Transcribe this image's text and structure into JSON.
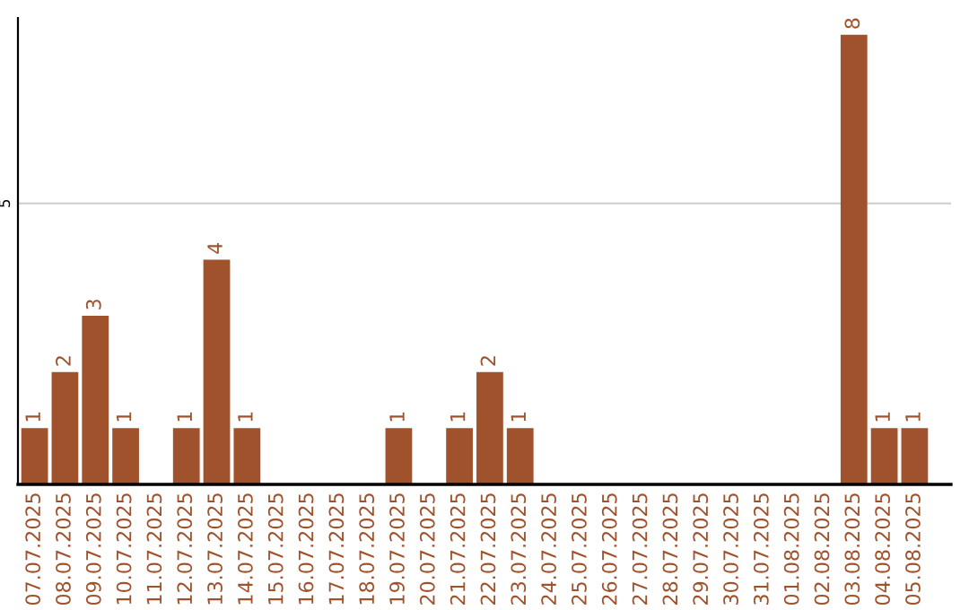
{
  "chart_data": {
    "type": "bar",
    "categories": [
      "07.07.2025",
      "08.07.2025",
      "09.07.2025",
      "10.07.2025",
      "11.07.2025",
      "12.07.2025",
      "13.07.2025",
      "14.07.2025",
      "15.07.2025",
      "16.07.2025",
      "17.07.2025",
      "18.07.2025",
      "19.07.2025",
      "20.07.2025",
      "21.07.2025",
      "22.07.2025",
      "23.07.2025",
      "24.07.2025",
      "25.07.2025",
      "26.07.2025",
      "27.07.2025",
      "28.07.2025",
      "29.07.2025",
      "30.07.2025",
      "31.07.2025",
      "01.08.2025",
      "02.08.2025",
      "03.08.2025",
      "04.08.2025",
      "05.08.2025"
    ],
    "values": [
      1,
      2,
      3,
      1,
      0,
      1,
      4,
      1,
      0,
      0,
      0,
      0,
      1,
      0,
      1,
      2,
      1,
      0,
      0,
      0,
      0,
      0,
      0,
      0,
      0,
      0,
      0,
      8,
      1,
      1
    ],
    "value_labels": [
      "1",
      "2",
      "3",
      "1",
      null,
      "1",
      "4",
      "1",
      null,
      null,
      null,
      null,
      "1",
      null,
      "1",
      "2",
      "1",
      null,
      null,
      null,
      null,
      null,
      null,
      null,
      null,
      null,
      null,
      "8",
      "1",
      "1"
    ],
    "color": "#a0522d",
    "ylim": [
      0,
      8.3
    ],
    "yticks": [
      5
    ],
    "grid": "y"
  }
}
